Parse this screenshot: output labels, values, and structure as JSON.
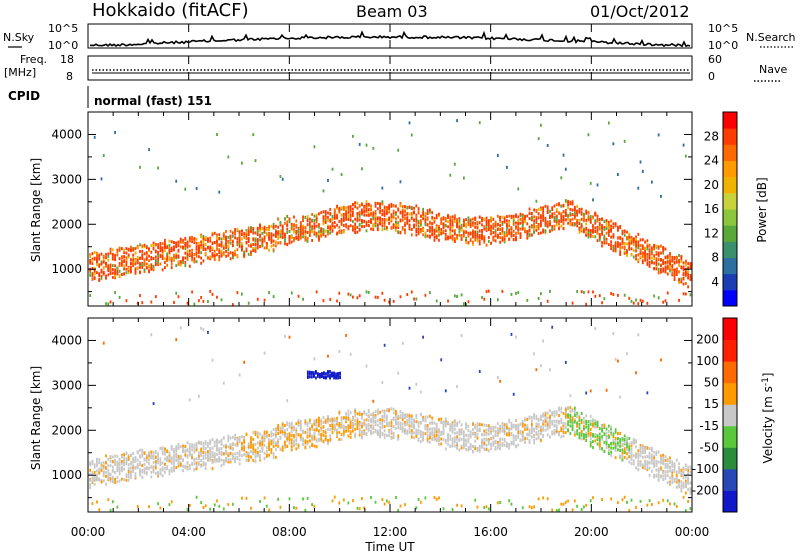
{
  "header": {
    "station": "Hokkaido (fitACF)",
    "beam": "Beam 03",
    "date": "01/Oct/2012"
  },
  "noise_panel": {
    "left_label": "N.Sky",
    "right_label": "N.Search",
    "left_ticks": [
      "10^5",
      "10^0"
    ],
    "right_ticks": [
      "10^5",
      "10^0"
    ]
  },
  "freq_panel": {
    "left_label_1": "Freq.",
    "left_label_2": "[MHz]",
    "right_label": "Nave",
    "left_ticks": [
      "18",
      "8"
    ],
    "right_ticks": [
      "60",
      "0"
    ]
  },
  "cpid_panel": {
    "label": "CPID",
    "text": "normal (fast) 151"
  },
  "x_axis": {
    "title": "Time UT",
    "ticks": [
      "00:00",
      "04:00",
      "08:00",
      "12:00",
      "16:00",
      "20:00",
      "00:00"
    ]
  },
  "chart_data": [
    {
      "type": "heatmap",
      "quantity": "Power",
      "ylabel": "Slant Range [km]",
      "xlabel": "Time UT",
      "ylim": [
        180,
        4500
      ],
      "xlim_hours": [
        0,
        24
      ],
      "y_ticks": [
        1000,
        2000,
        3000,
        4000
      ],
      "colorbar": {
        "label": "Power [dB]",
        "ticks": [
          "28",
          "24",
          "20",
          "16",
          "12",
          "8",
          "4"
        ],
        "colors": [
          "#0000ff",
          "#1a3cb4",
          "#2c6fa0",
          "#3a8f6c",
          "#5aa83c",
          "#8cc63c",
          "#c8d23c",
          "#f0b400",
          "#ff9a00",
          "#ff6a00",
          "#ff3c00",
          "#ff0000"
        ]
      }
    },
    {
      "type": "heatmap",
      "quantity": "Velocity",
      "ylabel": "Slant Range [km]",
      "xlabel": "Time UT",
      "ylim": [
        180,
        4500
      ],
      "xlim_hours": [
        0,
        24
      ],
      "y_ticks": [
        1000,
        2000,
        3000,
        4000
      ],
      "colorbar": {
        "label": "Velocity [m s^-1]",
        "ticks": [
          "200",
          "100",
          "50",
          "15",
          "-15",
          "-50",
          "-100",
          "-200"
        ],
        "colors": [
          "#1018c8",
          "#2848b8",
          "#2c8c3c",
          "#5ac83c",
          "#c8c8c8",
          "#ff9a00",
          "#ff6a00",
          "#ff2000",
          "#ff0000"
        ]
      }
    }
  ]
}
